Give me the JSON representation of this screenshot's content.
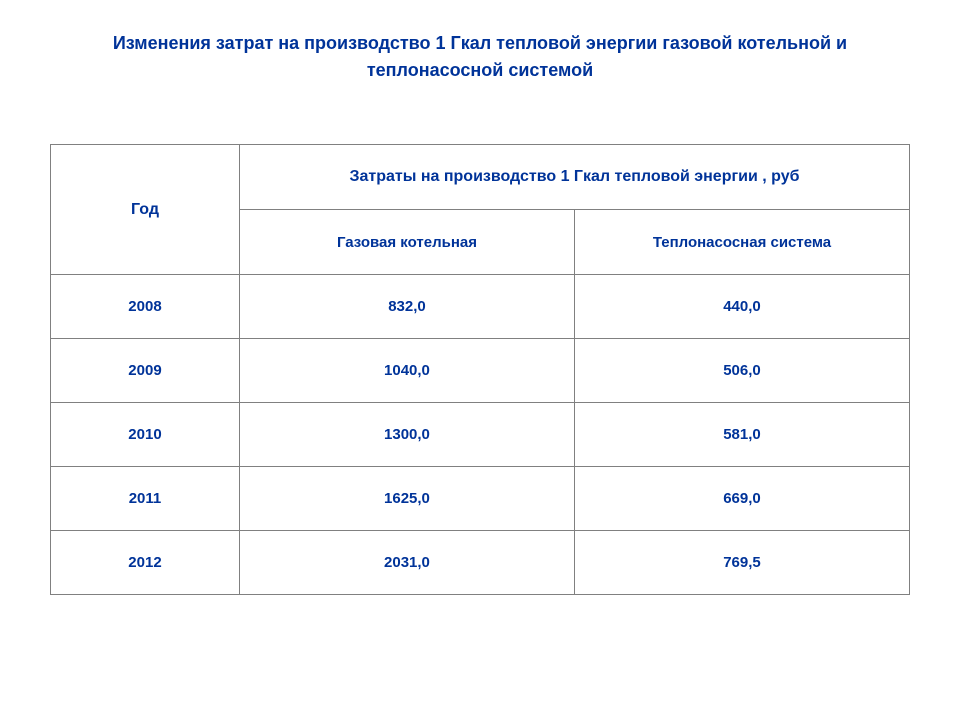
{
  "title": "Изменения затрат на производство 1 Гкал тепловой энергии газовой котельной и теплонасосной системой",
  "table": {
    "type": "table",
    "header_year": "Год",
    "header_cost": "Затраты на производство 1 Гкал тепловой энергии , руб",
    "subheader_gas": "Газовая котельная",
    "subheader_pump": "Теплонасосная система",
    "text_color": "#003399",
    "border_color": "#808080",
    "background_color": "#ffffff",
    "title_fontsize": 18,
    "header_fontsize": 16,
    "cell_fontsize": 15,
    "columns": [
      "Год",
      "Газовая котельная",
      "Теплонасосная система"
    ],
    "rows": [
      {
        "year": "2008",
        "gas": "832,0",
        "pump": "440,0"
      },
      {
        "year": "2009",
        "gas": "1040,0",
        "pump": "506,0"
      },
      {
        "year": "2010",
        "gas": "1300,0",
        "pump": "581,0"
      },
      {
        "year": "2011",
        "gas": "1625,0",
        "pump": "669,0"
      },
      {
        "year": "2012",
        "gas": "2031,0",
        "pump": "769,5"
      }
    ]
  }
}
